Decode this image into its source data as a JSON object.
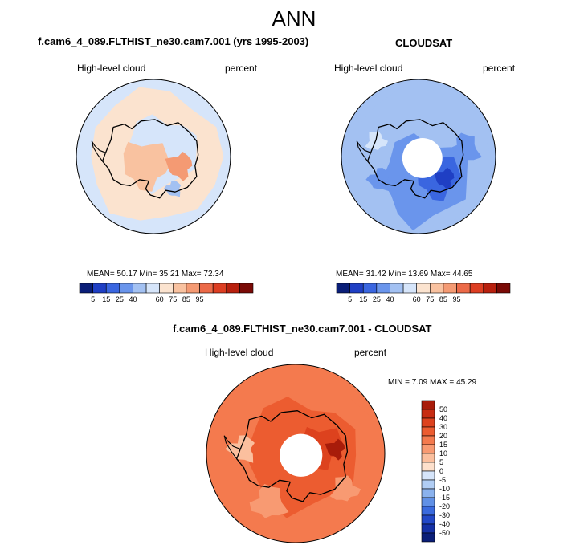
{
  "page": {
    "title": "ANN",
    "left_panel_title": "f.cam6_4_089.FLTHIST_ne30.cam7.001 (yrs 1995-2003)",
    "right_panel_title": "CLOUDSAT",
    "diff_panel_title": "f.cam6_4_089.FLTHIST_ne30.cam7.001 - CLOUDSAT"
  },
  "chart_data": [
    {
      "type": "heatmap",
      "projection": "south-polar-stereographic",
      "dataset": "f.cam6_4_089.FLTHIST_ne30.cam7.001 (yrs 1995-2003)",
      "variable": "High-level cloud",
      "units": "percent",
      "stats": {
        "mean_label": "MEAN=",
        "mean": "50.17",
        "min_label": "Min=",
        "min": "35.21",
        "max_label": "Max=",
        "max": "72.34"
      },
      "colorbar": {
        "orientation": "horizontal",
        "tick_labels": [
          "5",
          "15",
          "25",
          "40",
          "60",
          "75",
          "85",
          "95"
        ],
        "colors": [
          "#0a1e78",
          "#1f3fc4",
          "#3a66e0",
          "#6a95ec",
          "#a3c1f2",
          "#d6e5fa",
          "#fbe3cf",
          "#f9c2a0",
          "#f49a73",
          "#ec6a48",
          "#dd3e22",
          "#b8200e",
          "#7a0a06"
        ]
      },
      "dominant_colors": [
        "#d6e5fa",
        "#fbe3cf",
        "#f9c2a0"
      ]
    },
    {
      "type": "heatmap",
      "projection": "south-polar-stereographic",
      "dataset": "CLOUDSAT",
      "variable": "High-level cloud",
      "units": "percent",
      "stats": {
        "mean_label": "MEAN=",
        "mean": "31.42",
        "min_label": "Min=",
        "min": "13.69",
        "max_label": "Max=",
        "max": "44.65"
      },
      "colorbar": {
        "orientation": "horizontal",
        "tick_labels": [
          "5",
          "15",
          "25",
          "40",
          "60",
          "75",
          "85",
          "95"
        ],
        "colors": [
          "#0a1e78",
          "#1f3fc4",
          "#3a66e0",
          "#6a95ec",
          "#a3c1f2",
          "#d6e5fa",
          "#fbe3cf",
          "#f9c2a0",
          "#f49a73",
          "#ec6a48",
          "#dd3e22",
          "#b8200e",
          "#7a0a06"
        ]
      },
      "dominant_colors": [
        "#a3c1f2",
        "#6a95ec",
        "#3a66e0"
      ]
    },
    {
      "type": "heatmap",
      "projection": "south-polar-stereographic",
      "dataset": "f.cam6_4_089.FLTHIST_ne30.cam7.001 - CLOUDSAT",
      "variable": "High-level cloud",
      "units": "percent",
      "stats": {
        "min_label": "MIN =",
        "min": "7.09",
        "max_label": "MAX =",
        "max": "45.29"
      },
      "colorbar": {
        "orientation": "vertical",
        "tick_labels": [
          "50",
          "40",
          "30",
          "20",
          "15",
          "10",
          "5",
          "0",
          "-5",
          "-10",
          "-15",
          "-20",
          "-30",
          "-40",
          "-50"
        ],
        "colors": [
          "#a81c0a",
          "#c72c12",
          "#dd421e",
          "#ec5c30",
          "#f47a4e",
          "#f89a72",
          "#fbbf9e",
          "#fde0cc",
          "#d6e5fa",
          "#b0cdf4",
          "#8ab2ee",
          "#6090e6",
          "#3a6ade",
          "#2248c8",
          "#1430a6",
          "#0a1e78"
        ]
      },
      "dominant_colors": [
        "#f47a4e",
        "#ec5c30",
        "#dd421e"
      ]
    }
  ]
}
